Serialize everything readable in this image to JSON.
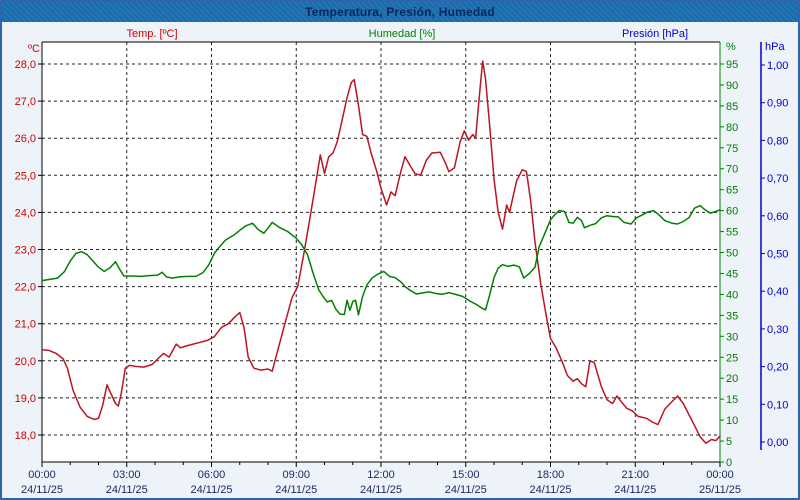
{
  "window": {
    "title": "Temperatura, Presión, Humedad"
  },
  "legend": {
    "temp_label": "Temp. [ºC]",
    "humidity_label": "Humedad [%]",
    "pressure_label": "Presión [hPa]"
  },
  "colors": {
    "temp": "#bb1522",
    "temp_text": "#cc0000",
    "humidity": "#008000",
    "pressure": "#0000cc",
    "axis_text": "#1a2a66",
    "grid": "#222222",
    "frame_border": "#2e64b1",
    "titlebar_bg": "#1f6fae",
    "plot_bg": "#ffffff",
    "outer_bg": "#eef3f9"
  },
  "chart_data": {
    "type": "line",
    "title": "Temperatura, Presión, Humedad",
    "grid": "dashed",
    "x_axis": {
      "range_hours": [
        0,
        24
      ],
      "major_tick_hours": 3,
      "minor_tick_hours": 1,
      "tick_times": [
        "00:00",
        "03:00",
        "06:00",
        "09:00",
        "12:00",
        "15:00",
        "18:00",
        "21:00",
        "00:00"
      ],
      "tick_dates": [
        "24/11/25",
        "24/11/25",
        "24/11/25",
        "24/11/25",
        "24/11/25",
        "24/11/25",
        "24/11/25",
        "24/11/25",
        "25/11/25"
      ]
    },
    "y_axis_temp": {
      "header": "ºC",
      "range": [
        18,
        28
      ],
      "tick_values": [
        28,
        27,
        26,
        25,
        24,
        23,
        22,
        21,
        20,
        19,
        18
      ],
      "tick_labels": [
        "28,0",
        "27,0",
        "26,0",
        "25,0",
        "24,0",
        "23,0",
        "22,0",
        "21,0",
        "20,0",
        "19,0",
        "18,0"
      ]
    },
    "y_axis_humidity": {
      "header": "%",
      "range": [
        0,
        95
      ],
      "tick_values": [
        95,
        90,
        85,
        80,
        75,
        70,
        65,
        60,
        55,
        50,
        45,
        40,
        35,
        30,
        25,
        20,
        15,
        10,
        5,
        0
      ],
      "tick_labels": [
        "95",
        "90",
        "85",
        "80",
        "75",
        "70",
        "65",
        "60",
        "55",
        "50",
        "45",
        "40",
        "35",
        "30",
        "25",
        "20",
        "15",
        "10",
        "5",
        "0"
      ]
    },
    "y_axis_pressure": {
      "header": "hPa",
      "range": [
        0,
        1
      ],
      "tick_values": [
        1.0,
        0.9,
        0.8,
        0.7,
        0.6,
        0.5,
        0.4,
        0.3,
        0.2,
        0.1,
        0.0
      ],
      "tick_labels": [
        "1,00",
        "0,90",
        "0,80",
        "0,70",
        "0,60",
        "0,50",
        "0,40",
        "0,30",
        "0,20",
        "0,10",
        "0,00"
      ]
    },
    "series": [
      {
        "name": "Temp. [ºC]",
        "axis": "temp",
        "color": "#bb1522",
        "points": [
          [
            0,
            20.3
          ],
          [
            0.25,
            20.28
          ],
          [
            0.5,
            20.2
          ],
          [
            0.75,
            20.05
          ],
          [
            0.9,
            19.8
          ],
          [
            1.1,
            19.2
          ],
          [
            1.35,
            18.75
          ],
          [
            1.6,
            18.5
          ],
          [
            1.85,
            18.42
          ],
          [
            2.0,
            18.45
          ],
          [
            2.15,
            18.8
          ],
          [
            2.3,
            19.35
          ],
          [
            2.45,
            19.1
          ],
          [
            2.6,
            18.85
          ],
          [
            2.7,
            18.78
          ],
          [
            2.8,
            19.1
          ],
          [
            2.95,
            19.8
          ],
          [
            3.1,
            19.88
          ],
          [
            3.3,
            19.85
          ],
          [
            3.6,
            19.83
          ],
          [
            3.9,
            19.9
          ],
          [
            4.1,
            20.05
          ],
          [
            4.3,
            20.2
          ],
          [
            4.5,
            20.1
          ],
          [
            4.75,
            20.45
          ],
          [
            4.9,
            20.35
          ],
          [
            5.1,
            20.4
          ],
          [
            5.35,
            20.45
          ],
          [
            5.6,
            20.5
          ],
          [
            5.85,
            20.55
          ],
          [
            6.1,
            20.65
          ],
          [
            6.35,
            20.9
          ],
          [
            6.6,
            21.0
          ],
          [
            6.85,
            21.2
          ],
          [
            7.0,
            21.3
          ],
          [
            7.15,
            20.9
          ],
          [
            7.3,
            20.1
          ],
          [
            7.5,
            19.8
          ],
          [
            7.75,
            19.75
          ],
          [
            8.0,
            19.78
          ],
          [
            8.15,
            19.72
          ],
          [
            8.35,
            20.3
          ],
          [
            8.6,
            21.0
          ],
          [
            8.85,
            21.7
          ],
          [
            9.05,
            22.0
          ],
          [
            9.25,
            22.8
          ],
          [
            9.45,
            23.7
          ],
          [
            9.65,
            24.6
          ],
          [
            9.85,
            25.55
          ],
          [
            10.0,
            25.05
          ],
          [
            10.15,
            25.5
          ],
          [
            10.3,
            25.6
          ],
          [
            10.45,
            25.9
          ],
          [
            10.6,
            26.4
          ],
          [
            10.8,
            27.1
          ],
          [
            10.95,
            27.5
          ],
          [
            11.05,
            27.58
          ],
          [
            11.2,
            26.9
          ],
          [
            11.35,
            26.1
          ],
          [
            11.5,
            26.05
          ],
          [
            11.65,
            25.6
          ],
          [
            11.85,
            25.1
          ],
          [
            12.0,
            24.65
          ],
          [
            12.2,
            24.2
          ],
          [
            12.35,
            24.55
          ],
          [
            12.5,
            24.45
          ],
          [
            12.7,
            25.1
          ],
          [
            12.85,
            25.5
          ],
          [
            13.0,
            25.3
          ],
          [
            13.2,
            25.05
          ],
          [
            13.4,
            25.0
          ],
          [
            13.6,
            25.4
          ],
          [
            13.8,
            25.6
          ],
          [
            14.1,
            25.62
          ],
          [
            14.3,
            25.3
          ],
          [
            14.4,
            25.1
          ],
          [
            14.6,
            25.2
          ],
          [
            14.8,
            25.9
          ],
          [
            14.95,
            26.2
          ],
          [
            15.1,
            25.95
          ],
          [
            15.25,
            26.1
          ],
          [
            15.35,
            26.0
          ],
          [
            15.5,
            27.3
          ],
          [
            15.6,
            28.08
          ],
          [
            15.7,
            27.6
          ],
          [
            15.85,
            26.3
          ],
          [
            16.0,
            24.9
          ],
          [
            16.15,
            24.0
          ],
          [
            16.3,
            23.55
          ],
          [
            16.45,
            24.2
          ],
          [
            16.55,
            24.0
          ],
          [
            16.8,
            24.85
          ],
          [
            17.0,
            25.15
          ],
          [
            17.15,
            25.1
          ],
          [
            17.3,
            24.3
          ],
          [
            17.45,
            23.2
          ],
          [
            17.65,
            22.1
          ],
          [
            17.85,
            21.2
          ],
          [
            18.0,
            20.6
          ],
          [
            18.2,
            20.35
          ],
          [
            18.4,
            20.0
          ],
          [
            18.6,
            19.6
          ],
          [
            18.8,
            19.45
          ],
          [
            18.95,
            19.52
          ],
          [
            19.1,
            19.38
          ],
          [
            19.25,
            19.3
          ],
          [
            19.4,
            20.0
          ],
          [
            19.55,
            19.95
          ],
          [
            19.8,
            19.3
          ],
          [
            20.0,
            18.95
          ],
          [
            20.2,
            18.85
          ],
          [
            20.35,
            19.05
          ],
          [
            20.5,
            18.9
          ],
          [
            20.7,
            18.72
          ],
          [
            20.9,
            18.65
          ],
          [
            21.1,
            18.5
          ],
          [
            21.4,
            18.45
          ],
          [
            21.6,
            18.35
          ],
          [
            21.8,
            18.28
          ],
          [
            22.05,
            18.7
          ],
          [
            22.3,
            18.9
          ],
          [
            22.5,
            19.05
          ],
          [
            22.7,
            18.85
          ],
          [
            22.9,
            18.55
          ],
          [
            23.1,
            18.25
          ],
          [
            23.3,
            17.95
          ],
          [
            23.5,
            17.78
          ],
          [
            23.7,
            17.88
          ],
          [
            23.85,
            17.85
          ],
          [
            24.0,
            17.97
          ]
        ]
      },
      {
        "name": "Humedad [%]",
        "axis": "humidity",
        "color": "#008000",
        "points": [
          [
            0,
            43.3
          ],
          [
            0.3,
            43.6
          ],
          [
            0.55,
            43.9
          ],
          [
            0.8,
            45.5
          ],
          [
            1.0,
            48.0
          ],
          [
            1.2,
            49.8
          ],
          [
            1.4,
            50.2
          ],
          [
            1.6,
            49.5
          ],
          [
            1.8,
            48.0
          ],
          [
            2.0,
            46.5
          ],
          [
            2.2,
            45.5
          ],
          [
            2.4,
            46.3
          ],
          [
            2.6,
            47.8
          ],
          [
            2.75,
            46.0
          ],
          [
            2.9,
            44.4
          ],
          [
            3.2,
            44.4
          ],
          [
            3.5,
            44.3
          ],
          [
            3.8,
            44.5
          ],
          [
            4.1,
            44.6
          ],
          [
            4.25,
            45.3
          ],
          [
            4.4,
            44.2
          ],
          [
            4.6,
            43.9
          ],
          [
            4.9,
            44.2
          ],
          [
            5.2,
            44.3
          ],
          [
            5.45,
            44.3
          ],
          [
            5.7,
            45.2
          ],
          [
            5.9,
            47.0
          ],
          [
            6.1,
            49.8
          ],
          [
            6.3,
            51.5
          ],
          [
            6.5,
            53.0
          ],
          [
            6.8,
            54.2
          ],
          [
            7.0,
            55.3
          ],
          [
            7.2,
            56.3
          ],
          [
            7.45,
            57.0
          ],
          [
            7.65,
            55.5
          ],
          [
            7.85,
            54.6
          ],
          [
            8.0,
            55.8
          ],
          [
            8.15,
            57.2
          ],
          [
            8.4,
            56.0
          ],
          [
            8.7,
            55.0
          ],
          [
            9.0,
            53.4
          ],
          [
            9.2,
            51.8
          ],
          [
            9.4,
            49.4
          ],
          [
            9.6,
            45.0
          ],
          [
            9.8,
            41.0
          ],
          [
            9.95,
            39.5
          ],
          [
            10.1,
            38.2
          ],
          [
            10.25,
            38.6
          ],
          [
            10.4,
            36.5
          ],
          [
            10.55,
            35.3
          ],
          [
            10.7,
            35.2
          ],
          [
            10.8,
            38.6
          ],
          [
            10.9,
            36.2
          ],
          [
            11.0,
            38.3
          ],
          [
            11.1,
            38.6
          ],
          [
            11.2,
            35.1
          ],
          [
            11.35,
            39.5
          ],
          [
            11.5,
            42.3
          ],
          [
            11.7,
            44.0
          ],
          [
            11.9,
            44.9
          ],
          [
            12.1,
            45.5
          ],
          [
            12.3,
            44.3
          ],
          [
            12.5,
            44.0
          ],
          [
            12.7,
            43.0
          ],
          [
            12.85,
            41.9
          ],
          [
            13.0,
            41.1
          ],
          [
            13.25,
            40.1
          ],
          [
            13.5,
            40.4
          ],
          [
            13.7,
            40.6
          ],
          [
            13.9,
            40.3
          ],
          [
            14.15,
            40.0
          ],
          [
            14.4,
            40.4
          ],
          [
            14.6,
            40.1
          ],
          [
            14.9,
            39.5
          ],
          [
            15.1,
            38.6
          ],
          [
            15.4,
            37.5
          ],
          [
            15.55,
            36.8
          ],
          [
            15.7,
            36.3
          ],
          [
            15.85,
            40.0
          ],
          [
            16.0,
            44.0
          ],
          [
            16.15,
            46.3
          ],
          [
            16.3,
            47.1
          ],
          [
            16.5,
            46.7
          ],
          [
            16.7,
            47.0
          ],
          [
            16.9,
            46.6
          ],
          [
            17.05,
            43.9
          ],
          [
            17.25,
            45.0
          ],
          [
            17.45,
            46.5
          ],
          [
            17.6,
            51.4
          ],
          [
            17.8,
            54.6
          ],
          [
            18.0,
            57.8
          ],
          [
            18.15,
            59.0
          ],
          [
            18.3,
            60.0
          ],
          [
            18.5,
            59.8
          ],
          [
            18.65,
            57.2
          ],
          [
            18.8,
            57.0
          ],
          [
            18.95,
            58.4
          ],
          [
            19.1,
            57.6
          ],
          [
            19.2,
            55.9
          ],
          [
            19.4,
            56.5
          ],
          [
            19.6,
            56.9
          ],
          [
            19.8,
            58.3
          ],
          [
            20.0,
            58.8
          ],
          [
            20.2,
            58.6
          ],
          [
            20.4,
            58.5
          ],
          [
            20.6,
            57.2
          ],
          [
            20.85,
            56.8
          ],
          [
            21.05,
            58.3
          ],
          [
            21.25,
            59.0
          ],
          [
            21.45,
            59.7
          ],
          [
            21.65,
            60.0
          ],
          [
            21.85,
            58.9
          ],
          [
            22.05,
            57.6
          ],
          [
            22.3,
            57.0
          ],
          [
            22.5,
            56.8
          ],
          [
            22.7,
            57.4
          ],
          [
            22.9,
            58.3
          ],
          [
            23.1,
            60.6
          ],
          [
            23.3,
            61.2
          ],
          [
            23.45,
            60.3
          ],
          [
            23.65,
            59.4
          ],
          [
            23.85,
            59.8
          ],
          [
            24.0,
            60.2
          ]
        ]
      },
      {
        "name": "Presión [hPa]",
        "axis": "pressure",
        "color": "#0000cc",
        "points": []
      }
    ]
  }
}
